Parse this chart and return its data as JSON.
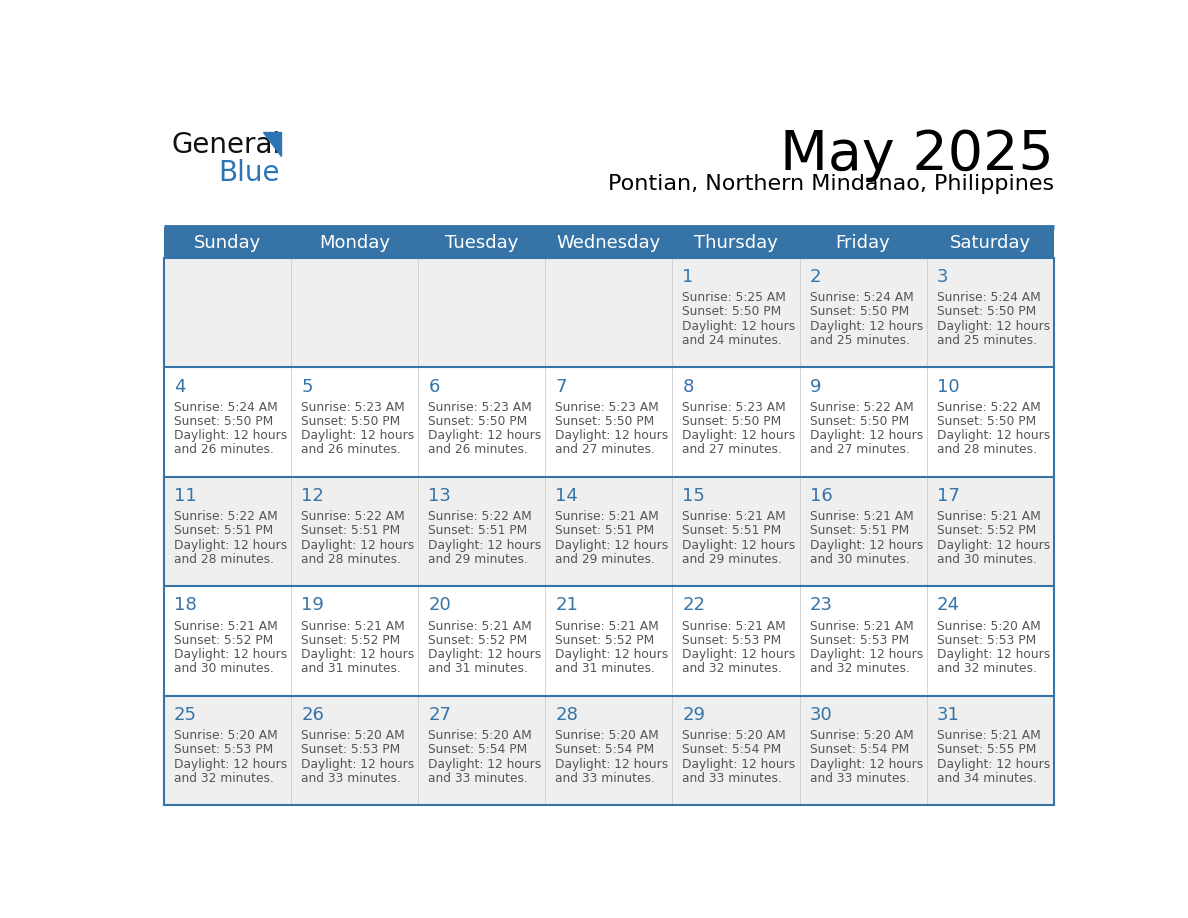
{
  "title": "May 2025",
  "subtitle": "Pontian, Northern Mindanao, Philippines",
  "header_bg_color": "#3674A8",
  "header_text_color": "#FFFFFF",
  "day_names": [
    "Sunday",
    "Monday",
    "Tuesday",
    "Wednesday",
    "Thursday",
    "Friday",
    "Saturday"
  ],
  "row_bg_colors": [
    "#EFEFEF",
    "#FFFFFF",
    "#EFEFEF",
    "#FFFFFF",
    "#EFEFEF"
  ],
  "cell_border_color": "#3674A8",
  "cell_inner_border_color": "#CCCCCC",
  "day_number_color": "#3674A8",
  "info_text_color": "#555555",
  "title_fontsize": 40,
  "subtitle_fontsize": 16,
  "header_day_fontsize": 13,
  "day_num_fontsize": 13,
  "info_fontsize": 8.8,
  "logo_color_general": "#111111",
  "logo_color_blue": "#2E75B6",
  "logo_triangle_color": "#2E75B6",
  "calendar_data": [
    [
      {
        "day": null,
        "sunrise": null,
        "sunset": null,
        "daylight": null
      },
      {
        "day": null,
        "sunrise": null,
        "sunset": null,
        "daylight": null
      },
      {
        "day": null,
        "sunrise": null,
        "sunset": null,
        "daylight": null
      },
      {
        "day": null,
        "sunrise": null,
        "sunset": null,
        "daylight": null
      },
      {
        "day": 1,
        "sunrise": "5:25 AM",
        "sunset": "5:50 PM",
        "daylight": "12 hours and 24 minutes"
      },
      {
        "day": 2,
        "sunrise": "5:24 AM",
        "sunset": "5:50 PM",
        "daylight": "12 hours and 25 minutes"
      },
      {
        "day": 3,
        "sunrise": "5:24 AM",
        "sunset": "5:50 PM",
        "daylight": "12 hours and 25 minutes"
      }
    ],
    [
      {
        "day": 4,
        "sunrise": "5:24 AM",
        "sunset": "5:50 PM",
        "daylight": "12 hours and 26 minutes"
      },
      {
        "day": 5,
        "sunrise": "5:23 AM",
        "sunset": "5:50 PM",
        "daylight": "12 hours and 26 minutes"
      },
      {
        "day": 6,
        "sunrise": "5:23 AM",
        "sunset": "5:50 PM",
        "daylight": "12 hours and 26 minutes"
      },
      {
        "day": 7,
        "sunrise": "5:23 AM",
        "sunset": "5:50 PM",
        "daylight": "12 hours and 27 minutes"
      },
      {
        "day": 8,
        "sunrise": "5:23 AM",
        "sunset": "5:50 PM",
        "daylight": "12 hours and 27 minutes"
      },
      {
        "day": 9,
        "sunrise": "5:22 AM",
        "sunset": "5:50 PM",
        "daylight": "12 hours and 27 minutes"
      },
      {
        "day": 10,
        "sunrise": "5:22 AM",
        "sunset": "5:50 PM",
        "daylight": "12 hours and 28 minutes"
      }
    ],
    [
      {
        "day": 11,
        "sunrise": "5:22 AM",
        "sunset": "5:51 PM",
        "daylight": "12 hours and 28 minutes"
      },
      {
        "day": 12,
        "sunrise": "5:22 AM",
        "sunset": "5:51 PM",
        "daylight": "12 hours and 28 minutes"
      },
      {
        "day": 13,
        "sunrise": "5:22 AM",
        "sunset": "5:51 PM",
        "daylight": "12 hours and 29 minutes"
      },
      {
        "day": 14,
        "sunrise": "5:21 AM",
        "sunset": "5:51 PM",
        "daylight": "12 hours and 29 minutes"
      },
      {
        "day": 15,
        "sunrise": "5:21 AM",
        "sunset": "5:51 PM",
        "daylight": "12 hours and 29 minutes"
      },
      {
        "day": 16,
        "sunrise": "5:21 AM",
        "sunset": "5:51 PM",
        "daylight": "12 hours and 30 minutes"
      },
      {
        "day": 17,
        "sunrise": "5:21 AM",
        "sunset": "5:52 PM",
        "daylight": "12 hours and 30 minutes"
      }
    ],
    [
      {
        "day": 18,
        "sunrise": "5:21 AM",
        "sunset": "5:52 PM",
        "daylight": "12 hours and 30 minutes"
      },
      {
        "day": 19,
        "sunrise": "5:21 AM",
        "sunset": "5:52 PM",
        "daylight": "12 hours and 31 minutes"
      },
      {
        "day": 20,
        "sunrise": "5:21 AM",
        "sunset": "5:52 PM",
        "daylight": "12 hours and 31 minutes"
      },
      {
        "day": 21,
        "sunrise": "5:21 AM",
        "sunset": "5:52 PM",
        "daylight": "12 hours and 31 minutes"
      },
      {
        "day": 22,
        "sunrise": "5:21 AM",
        "sunset": "5:53 PM",
        "daylight": "12 hours and 32 minutes"
      },
      {
        "day": 23,
        "sunrise": "5:21 AM",
        "sunset": "5:53 PM",
        "daylight": "12 hours and 32 minutes"
      },
      {
        "day": 24,
        "sunrise": "5:20 AM",
        "sunset": "5:53 PM",
        "daylight": "12 hours and 32 minutes"
      }
    ],
    [
      {
        "day": 25,
        "sunrise": "5:20 AM",
        "sunset": "5:53 PM",
        "daylight": "12 hours and 32 minutes"
      },
      {
        "day": 26,
        "sunrise": "5:20 AM",
        "sunset": "5:53 PM",
        "daylight": "12 hours and 33 minutes"
      },
      {
        "day": 27,
        "sunrise": "5:20 AM",
        "sunset": "5:54 PM",
        "daylight": "12 hours and 33 minutes"
      },
      {
        "day": 28,
        "sunrise": "5:20 AM",
        "sunset": "5:54 PM",
        "daylight": "12 hours and 33 minutes"
      },
      {
        "day": 29,
        "sunrise": "5:20 AM",
        "sunset": "5:54 PM",
        "daylight": "12 hours and 33 minutes"
      },
      {
        "day": 30,
        "sunrise": "5:20 AM",
        "sunset": "5:54 PM",
        "daylight": "12 hours and 33 minutes"
      },
      {
        "day": 31,
        "sunrise": "5:21 AM",
        "sunset": "5:55 PM",
        "daylight": "12 hours and 34 minutes"
      }
    ]
  ]
}
